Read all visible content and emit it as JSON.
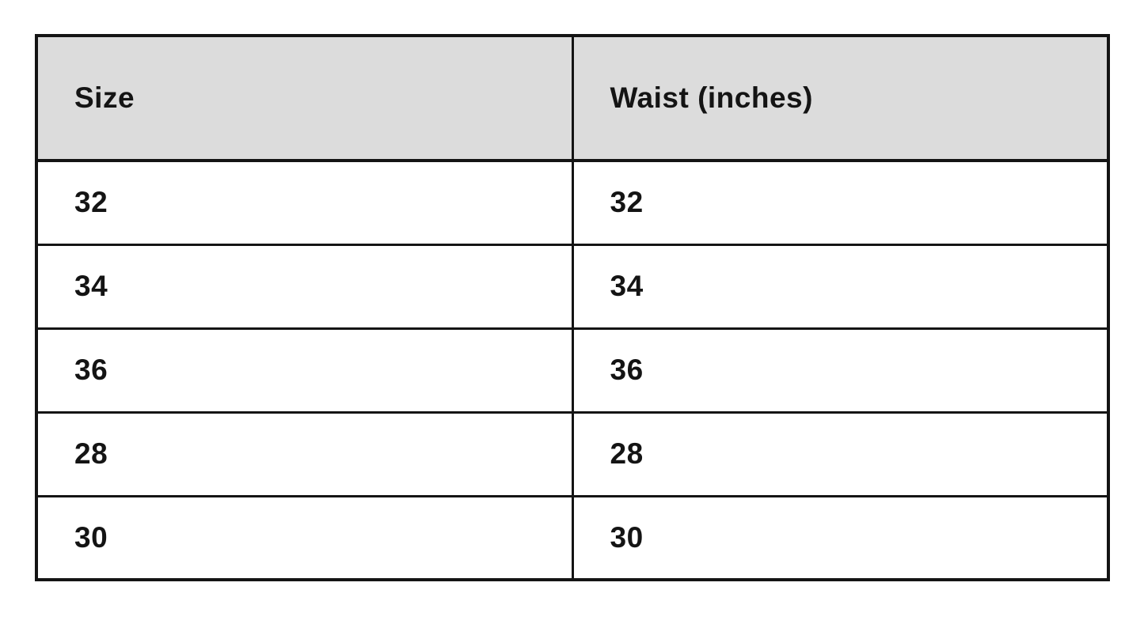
{
  "chart_data": {
    "type": "table",
    "title": "",
    "columns": [
      "Size",
      "Waist (inches)"
    ],
    "rows": [
      [
        "32",
        "32"
      ],
      [
        "34",
        "34"
      ],
      [
        "36",
        "36"
      ],
      [
        "28",
        "28"
      ],
      [
        "30",
        "30"
      ]
    ],
    "layout": {
      "header_background": "#dcdcdc",
      "body_background": "#ffffff",
      "border_color": "#141414",
      "text_color": "#141414",
      "columns_equal_width": true
    }
  }
}
